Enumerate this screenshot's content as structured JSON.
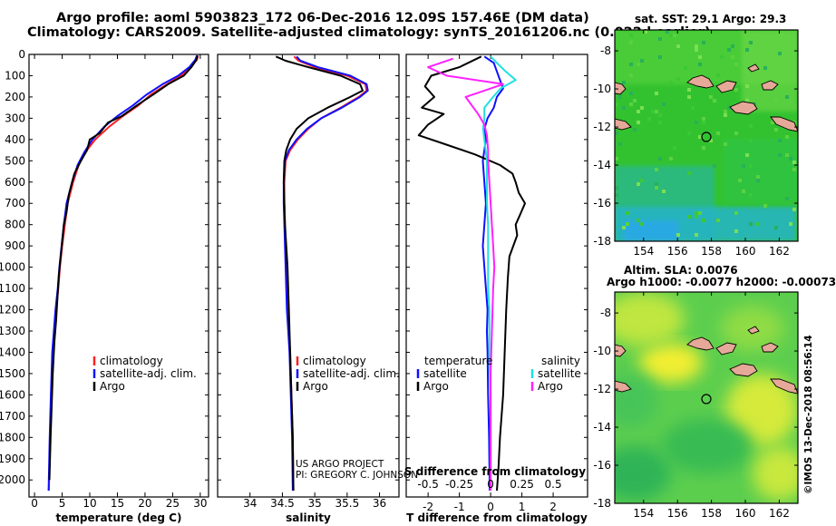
{
  "header": {
    "title_line1": "Argo profile: aoml 5903823_172 06-Dec-2016 12.09S 157.46E (DM data)",
    "title_line2": "Climatology: CARS2009. Satellite-adjusted climatology: synTS_20161206.nc (0.022d earlier)"
  },
  "credits": {
    "project": "US ARGO PROJECT",
    "pi": "PI: GREGORY C. JOHNSON",
    "imos": "©IMOS 13-Dec-2018 08:56:14"
  },
  "colors": {
    "climatology": "#ff2020",
    "satellite": "#1010ff",
    "argo": "#000000",
    "sal_satellite": "#20e0e0",
    "sal_argo": "#ff20ff"
  },
  "maps": {
    "sst_title": "sat. SST: 29.1 Argo: 29.3",
    "sla_title1": "Altim. SLA: 0.0076",
    "sla_title2": "Argo h1000: -0.0077 h2000: -0.00073",
    "lat_ticks": [
      "-8",
      "-10",
      "-12",
      "-14",
      "-16",
      "-18"
    ],
    "lon_ticks": [
      "154",
      "156",
      "158",
      "160",
      "162"
    ]
  },
  "chart_data": [
    {
      "type": "line",
      "id": "temperature",
      "xlabel": "temperature (deg C)",
      "ylabel": "pressure (dbar)",
      "xlim": [
        -1,
        31.5
      ],
      "ylim": [
        2080,
        0
      ],
      "xticks": [
        0,
        5,
        10,
        15,
        20,
        25,
        30
      ],
      "yticks": [
        0,
        100,
        200,
        300,
        400,
        500,
        600,
        700,
        800,
        900,
        1000,
        1100,
        1200,
        1300,
        1400,
        1500,
        1600,
        1700,
        1800,
        1900,
        2000
      ],
      "legend": [
        "climatology",
        "satellite-adj. clim.",
        "Argo"
      ],
      "series": [
        {
          "name": "climatology",
          "color": "#ff2020",
          "x": [
            29.6,
            29.4,
            28.2,
            26.5,
            24.0,
            21.0,
            18.8,
            16.0,
            13.5,
            11.0,
            9.2,
            8.0,
            7.0,
            6.0,
            5.5,
            5.0,
            4.6,
            4.3,
            3.9,
            3.6,
            3.3,
            3.0,
            2.8,
            2.6
          ],
          "y": [
            5,
            25,
            60,
            100,
            140,
            190,
            240,
            290,
            340,
            400,
            460,
            520,
            600,
            700,
            800,
            900,
            1000,
            1100,
            1200,
            1300,
            1400,
            1600,
            1800,
            2050
          ]
        },
        {
          "name": "satellite-adj. clim.",
          "color": "#1010ff",
          "x": [
            29.4,
            29.1,
            28.0,
            26.0,
            23.2,
            20.2,
            17.8,
            15.0,
            12.6,
            10.5,
            9.0,
            7.8,
            6.8,
            5.8,
            5.3,
            4.9,
            4.5,
            4.2,
            3.8,
            3.5,
            3.2,
            2.95,
            2.75,
            2.55
          ],
          "y": [
            5,
            25,
            60,
            100,
            140,
            190,
            240,
            290,
            340,
            400,
            460,
            520,
            600,
            700,
            800,
            900,
            1000,
            1100,
            1200,
            1300,
            1400,
            1600,
            1800,
            2050
          ]
        },
        {
          "name": "Argo",
          "color": "#000000",
          "x": [
            29.5,
            29.3,
            28.4,
            27.0,
            24.2,
            21.4,
            18.5,
            15.8,
            13.3,
            11.8,
            10.0,
            9.5,
            8.4,
            7.2,
            6.2,
            5.8,
            5.3,
            5.0,
            4.7,
            4.4,
            4.2,
            3.9,
            3.6,
            3.3,
            3.1,
            2.9,
            2.7
          ],
          "y": [
            5,
            25,
            60,
            100,
            140,
            190,
            240,
            290,
            320,
            370,
            400,
            450,
            500,
            560,
            660,
            740,
            800,
            880,
            960,
            1040,
            1120,
            1250,
            1350,
            1500,
            1650,
            1800,
            2000
          ]
        }
      ]
    },
    {
      "type": "line",
      "id": "salinity",
      "xlabel": "salinity",
      "xlim": [
        33.5,
        36.3
      ],
      "ylim": [
        2080,
        0
      ],
      "xticks": [
        34,
        34.5,
        35,
        35.5,
        36
      ],
      "legend": [
        "climatology",
        "satellite-adj. clim.",
        "Argo"
      ],
      "series": [
        {
          "name": "climatology",
          "color": "#ff2020",
          "x": [
            34.68,
            34.75,
            35.0,
            35.5,
            35.78,
            35.8,
            35.68,
            35.4,
            35.1,
            34.9,
            34.74,
            34.62,
            34.55,
            34.53,
            34.53,
            34.54,
            34.55,
            34.56,
            34.57,
            34.58,
            34.6,
            34.62,
            34.64,
            34.66,
            34.67
          ],
          "y": [
            10,
            30,
            60,
            100,
            140,
            170,
            200,
            250,
            300,
            350,
            400,
            450,
            500,
            600,
            700,
            800,
            900,
            1000,
            1100,
            1200,
            1300,
            1400,
            1600,
            1800,
            2050
          ]
        },
        {
          "name": "satellite-adj. clim.",
          "color": "#1010ff",
          "x": [
            34.72,
            34.78,
            35.05,
            35.55,
            35.8,
            35.82,
            35.7,
            35.42,
            35.1,
            34.88,
            34.72,
            34.6,
            34.54,
            34.52,
            34.52,
            34.53,
            34.54,
            34.55,
            34.56,
            34.57,
            34.59,
            34.61,
            34.63,
            34.65,
            34.66
          ],
          "y": [
            10,
            30,
            60,
            100,
            140,
            170,
            200,
            250,
            300,
            350,
            400,
            450,
            500,
            600,
            700,
            800,
            900,
            1000,
            1100,
            1200,
            1300,
            1400,
            1600,
            1800,
            2050
          ]
        },
        {
          "name": "Argo",
          "color": "#000000",
          "x": [
            34.4,
            34.55,
            34.9,
            35.4,
            35.7,
            35.74,
            35.55,
            35.2,
            34.9,
            34.72,
            34.62,
            34.56,
            34.53,
            34.52,
            34.53,
            34.54,
            34.56,
            34.58,
            34.6,
            34.62,
            34.64,
            34.66,
            34.67
          ],
          "y": [
            10,
            30,
            60,
            100,
            140,
            170,
            200,
            250,
            300,
            350,
            400,
            450,
            500,
            600,
            700,
            800,
            900,
            1000,
            1200,
            1400,
            1600,
            1800,
            2050
          ]
        }
      ]
    },
    {
      "type": "line",
      "id": "difference",
      "xlabel": "T difference from climatology",
      "x2label": "S difference from climatology",
      "xlim": [
        -2.7,
        3.1
      ],
      "x2lim": [
        -0.675,
        0.775
      ],
      "ylim": [
        2080,
        0
      ],
      "xticks": [
        -2,
        -1,
        0,
        1,
        2
      ],
      "x2ticks": [
        -0.5,
        -0.25,
        0,
        0.25,
        0.5
      ],
      "x2ticklabels": [
        "-0.5",
        "-0.25",
        "0",
        "0.25",
        "0.5"
      ],
      "legend_left_title": "temperature",
      "legend_right_title": "salinity",
      "legend_left": [
        "satellite",
        "Argo"
      ],
      "legend_right": [
        "satellite",
        "Argo"
      ],
      "series": [
        {
          "name": "T satellite",
          "color": "#1010ff",
          "axis": "T",
          "x": [
            -0.2,
            0.1,
            0.2,
            0.3,
            0.4,
            0.2,
            0.1,
            -0.1,
            -0.2,
            -0.15,
            -0.2,
            -0.25,
            -0.2,
            -0.15,
            -0.2,
            -0.25,
            -0.2,
            -0.15,
            -0.1,
            -0.12,
            -0.1,
            -0.08,
            -0.05,
            -0.03
          ],
          "y": [
            10,
            40,
            80,
            120,
            160,
            200,
            250,
            300,
            350,
            400,
            450,
            500,
            600,
            700,
            800,
            900,
            1000,
            1100,
            1200,
            1300,
            1400,
            1600,
            1800,
            2050
          ]
        },
        {
          "name": "T Argo",
          "color": "#000000",
          "axis": "T",
          "x": [
            -0.3,
            -1.0,
            -1.9,
            -2.1,
            -1.8,
            -2.2,
            -1.5,
            -2.0,
            -2.3,
            -1.5,
            -0.5,
            0.3,
            0.7,
            0.8,
            0.9,
            1.1,
            0.95,
            0.8,
            0.85,
            0.6,
            0.55,
            0.5,
            0.45,
            0.4,
            0.3,
            0.25,
            0.2
          ],
          "y": [
            10,
            60,
            100,
            150,
            200,
            250,
            280,
            330,
            380,
            420,
            470,
            520,
            560,
            600,
            650,
            700,
            750,
            800,
            850,
            950,
            1050,
            1200,
            1400,
            1600,
            1800,
            1950,
            2050
          ]
        },
        {
          "name": "S satellite",
          "color": "#20e0e0",
          "axis": "S",
          "x": [
            0.0,
            0.05,
            0.12,
            0.2,
            0.08,
            0.02,
            -0.05,
            -0.05,
            -0.06,
            -0.05,
            -0.04,
            -0.03,
            -0.03,
            -0.03,
            -0.02,
            -0.02,
            -0.02,
            -0.02,
            -0.01,
            -0.01,
            -0.01,
            0.0,
            0.0,
            0.0
          ],
          "y": [
            10,
            40,
            80,
            120,
            160,
            200,
            250,
            300,
            350,
            400,
            450,
            500,
            600,
            700,
            800,
            900,
            1000,
            1100,
            1200,
            1300,
            1400,
            1600,
            1800,
            2050
          ]
        },
        {
          "name": "S Argo",
          "color": "#ff20ff",
          "axis": "S",
          "x": [
            -0.3,
            -0.5,
            -0.35,
            0.1,
            -0.05,
            -0.2,
            -0.15,
            -0.1,
            -0.05,
            -0.03,
            -0.02,
            -0.02,
            -0.01,
            0.0,
            0.01,
            0.02,
            0.03,
            0.02,
            0.01,
            0.0,
            0.0,
            0.0
          ],
          "y": [
            20,
            60,
            100,
            140,
            170,
            200,
            240,
            280,
            330,
            380,
            450,
            500,
            600,
            700,
            800,
            900,
            1000,
            1100,
            1300,
            1500,
            1800,
            2050
          ]
        }
      ]
    }
  ]
}
